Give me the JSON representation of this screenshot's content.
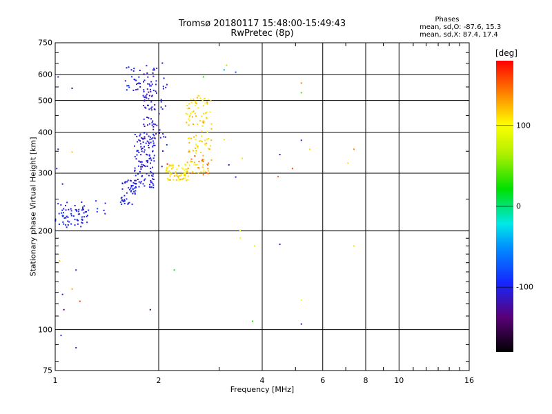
{
  "title": "Tromsø 20180117 15:48:00-15:49:43",
  "subtitle": "RwPretec (8p)",
  "phases": {
    "heading": "Phases",
    "o_stats": "mean, sd,O: -87.6, 15.3",
    "x_stats": "mean, sd,X:  87.4, 17.4"
  },
  "chart_data": {
    "type": "scatter",
    "title": "Tromsø 20180117 15:48:00-15:49:43",
    "subtitle": "RwPretec (8p)",
    "xlabel": "Frequency [MHz]",
    "ylabel": "Stationary phase Virtual Height [km]",
    "x_scale": "log",
    "y_scale": "log",
    "xlim": [
      1,
      16
    ],
    "ylim": [
      75,
      750
    ],
    "x_ticks": [
      1,
      2,
      4,
      6,
      8,
      10,
      16
    ],
    "x_tick_labels": [
      "1",
      "2",
      "4",
      "6",
      "8",
      "10",
      "16"
    ],
    "x_minor_ticks": [
      3,
      5,
      7,
      9,
      11,
      12,
      13,
      14,
      15
    ],
    "y_ticks": [
      75,
      100,
      200,
      300,
      400,
      500,
      600,
      750
    ],
    "y_tick_labels": [
      "75",
      "100",
      "200",
      "300",
      "400",
      "500",
      "600",
      "750"
    ],
    "grid": true,
    "colorbar": {
      "label": "[deg]",
      "range": [
        -180,
        180
      ],
      "ticks": [
        100,
        0,
        -100
      ],
      "tick_labels": [
        "100",
        "0",
        "-100"
      ]
    },
    "clusters": [
      {
        "x": [
          1.0,
          1.25
        ],
        "y": [
          205,
          245
        ],
        "phase": -100,
        "count": 70
      },
      {
        "x": [
          1.28,
          1.4
        ],
        "y": [
          225,
          248
        ],
        "phase": -95,
        "count": 6
      },
      {
        "x": [
          1.55,
          1.72
        ],
        "y": [
          240,
          290
        ],
        "phase": -100,
        "count": 50
      },
      {
        "x": [
          1.7,
          1.95
        ],
        "y": [
          270,
          400
        ],
        "phase": -105,
        "count": 120
      },
      {
        "x": [
          1.8,
          1.98
        ],
        "y": [
          380,
          640
        ],
        "phase": -110,
        "count": 80
      },
      {
        "x": [
          1.6,
          1.78
        ],
        "y": [
          510,
          640
        ],
        "phase": -100,
        "count": 25
      },
      {
        "x": [
          2.0,
          2.12
        ],
        "y": [
          300,
          600
        ],
        "phase": -105,
        "count": 20
      },
      {
        "x": [
          2.1,
          2.45
        ],
        "y": [
          285,
          320
        ],
        "phase": 110,
        "count": 70
      },
      {
        "x": [
          2.4,
          2.85
        ],
        "y": [
          300,
          520
        ],
        "phase": 115,
        "count": 120
      },
      {
        "x": [
          2.45,
          2.8
        ],
        "y": [
          295,
          340
        ],
        "phase": 150,
        "count": 15
      }
    ],
    "points": [
      {
        "x": 1.02,
        "y": 590,
        "phase": -110
      },
      {
        "x": 1.12,
        "y": 545,
        "phase": -150
      },
      {
        "x": 1.02,
        "y": 355,
        "phase": -120
      },
      {
        "x": 1.05,
        "y": 278,
        "phase": -120
      },
      {
        "x": 1.01,
        "y": 310,
        "phase": -110
      },
      {
        "x": 1.15,
        "y": 152,
        "phase": -120
      },
      {
        "x": 1.12,
        "y": 133,
        "phase": 130
      },
      {
        "x": 1.05,
        "y": 128,
        "phase": -110
      },
      {
        "x": 1.06,
        "y": 115,
        "phase": -140
      },
      {
        "x": 1.18,
        "y": 122,
        "phase": 160
      },
      {
        "x": 1.03,
        "y": 162,
        "phase": 120
      },
      {
        "x": 1.04,
        "y": 96,
        "phase": -90
      },
      {
        "x": 1.15,
        "y": 88,
        "phase": -120
      },
      {
        "x": 1.12,
        "y": 348,
        "phase": 120
      },
      {
        "x": 1.89,
        "y": 115,
        "phase": -150
      },
      {
        "x": 2.22,
        "y": 152,
        "phase": 20
      },
      {
        "x": 2.12,
        "y": 320,
        "phase": 170
      },
      {
        "x": 2.05,
        "y": 650,
        "phase": -100
      },
      {
        "x": 2.7,
        "y": 590,
        "phase": 30
      },
      {
        "x": 3.1,
        "y": 620,
        "phase": -40
      },
      {
        "x": 3.15,
        "y": 640,
        "phase": 60
      },
      {
        "x": 3.35,
        "y": 610,
        "phase": -80
      },
      {
        "x": 3.1,
        "y": 380,
        "phase": 110
      },
      {
        "x": 3.35,
        "y": 292,
        "phase": -110
      },
      {
        "x": 3.2,
        "y": 318,
        "phase": -110
      },
      {
        "x": 3.5,
        "y": 333,
        "phase": 110
      },
      {
        "x": 3.45,
        "y": 200,
        "phase": 100
      },
      {
        "x": 3.45,
        "y": 190,
        "phase": 100
      },
      {
        "x": 3.8,
        "y": 180,
        "phase": 90
      },
      {
        "x": 3.75,
        "y": 106,
        "phase": 30
      },
      {
        "x": 4.45,
        "y": 293,
        "phase": 150
      },
      {
        "x": 4.5,
        "y": 182,
        "phase": -110
      },
      {
        "x": 4.5,
        "y": 342,
        "phase": -110
      },
      {
        "x": 4.9,
        "y": 310,
        "phase": 160
      },
      {
        "x": 5.2,
        "y": 565,
        "phase": 140
      },
      {
        "x": 5.2,
        "y": 528,
        "phase": 40
      },
      {
        "x": 5.2,
        "y": 378,
        "phase": -110
      },
      {
        "x": 5.2,
        "y": 123,
        "phase": 100
      },
      {
        "x": 5.2,
        "y": 104,
        "phase": -110
      },
      {
        "x": 5.5,
        "y": 355,
        "phase": 110
      },
      {
        "x": 7.1,
        "y": 322,
        "phase": 110
      },
      {
        "x": 7.4,
        "y": 355,
        "phase": 140
      },
      {
        "x": 7.4,
        "y": 180,
        "phase": 110
      }
    ]
  }
}
